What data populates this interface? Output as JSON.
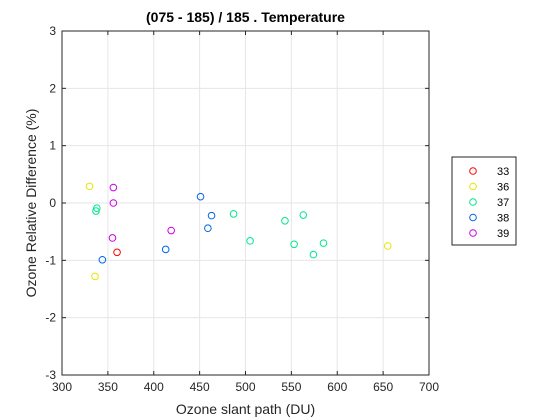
{
  "chart_data": {
    "type": "scatter",
    "title": "(075 - 185) / 185 . Temperature",
    "xlabel": "Ozone slant path (DU)",
    "ylabel": "Ozone Relative Difference (%)",
    "xlim": [
      300,
      700
    ],
    "ylim": [
      -3,
      3
    ],
    "xticks": [
      "300",
      "350",
      "400",
      "450",
      "500",
      "550",
      "600",
      "650",
      "700"
    ],
    "yticks": [
      "-3",
      "-2",
      "-1",
      "0",
      "1",
      "2",
      "3"
    ],
    "grid": true,
    "legend_position": "right",
    "series": [
      {
        "name": "33",
        "color": "#ff0000",
        "points": [
          [
            360,
            -0.86
          ]
        ]
      },
      {
        "name": "36",
        "color": "#e6e600",
        "points": [
          [
            330,
            0.29
          ],
          [
            336,
            -1.28
          ],
          [
            655,
            -0.75
          ]
        ]
      },
      {
        "name": "37",
        "color": "#00e68c",
        "points": [
          [
            337,
            -0.14
          ],
          [
            338,
            -0.09
          ],
          [
            487,
            -0.19
          ],
          [
            505,
            -0.66
          ],
          [
            543,
            -0.31
          ],
          [
            553,
            -0.72
          ],
          [
            563,
            -0.21
          ],
          [
            574,
            -0.9
          ],
          [
            585,
            -0.7
          ]
        ]
      },
      {
        "name": "38",
        "color": "#0066e6",
        "points": [
          [
            344,
            -0.99
          ],
          [
            413,
            -0.81
          ],
          [
            451,
            0.11
          ],
          [
            459,
            -0.44
          ],
          [
            463,
            -0.22
          ]
        ]
      },
      {
        "name": "39",
        "color": "#cc00e6",
        "points": [
          [
            355,
            -0.61
          ],
          [
            356,
            0.27
          ],
          [
            356,
            0.0
          ],
          [
            419,
            -0.48
          ]
        ]
      }
    ]
  }
}
